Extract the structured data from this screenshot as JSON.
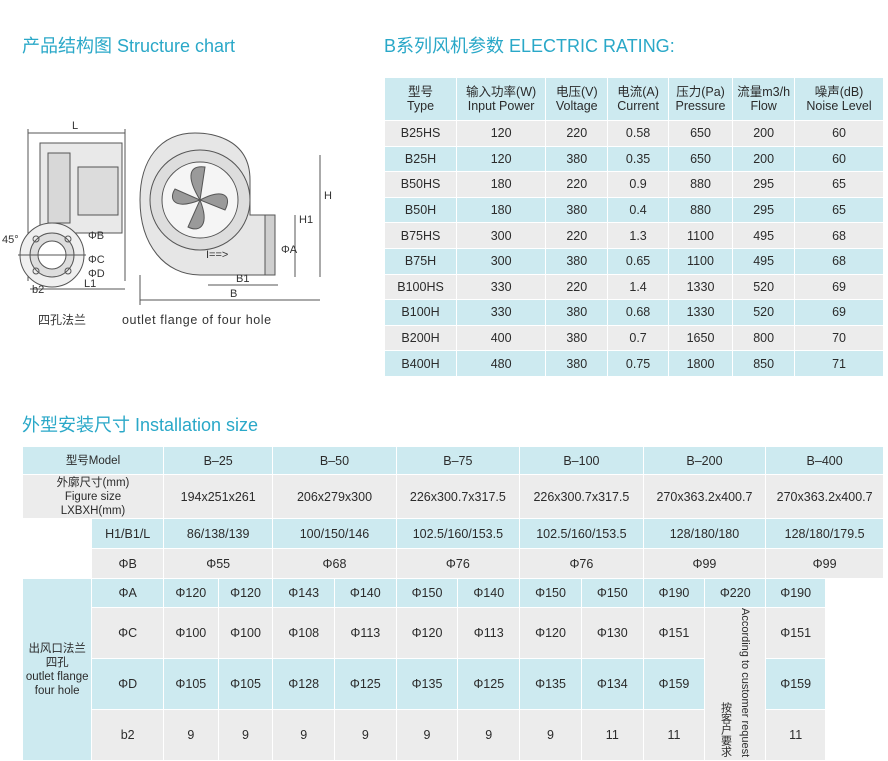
{
  "headings": {
    "structure": "产品结构图 Structure chart",
    "electric": "B系列风机参数  ELECTRIC RATING:",
    "installation": "外型安装尺寸 Installation size"
  },
  "diagram": {
    "caption_left": "四孔法兰",
    "caption_right": "outlet flange of four hole",
    "labels": {
      "L": "L",
      "L1": "L1",
      "b2": "b2",
      "deg": "45°",
      "phiB": "ΦB",
      "phiC": "ΦC",
      "phiD": "ΦD",
      "H": "H",
      "H1": "H1",
      "phiA": "ΦA",
      "B1": "B1",
      "B": "B",
      "arrow": "I==>"
    }
  },
  "electric": {
    "headers": [
      [
        "型号",
        "Type"
      ],
      [
        "输入功率(W)",
        "Input Power"
      ],
      [
        "电压(V)",
        "Voltage"
      ],
      [
        "电流(A)",
        "Current"
      ],
      [
        "压力(Pa)",
        "Pressure"
      ],
      [
        "流量m3/h",
        "Flow"
      ],
      [
        "噪声(dB)",
        "Noise Level"
      ]
    ],
    "rows": [
      [
        "B25HS",
        "120",
        "220",
        "0.58",
        "650",
        "200",
        "60"
      ],
      [
        "B25H",
        "120",
        "380",
        "0.35",
        "650",
        "200",
        "60"
      ],
      [
        "B50HS",
        "180",
        "220",
        "0.9",
        "880",
        "295",
        "65"
      ],
      [
        "B50H",
        "180",
        "380",
        "0.4",
        "880",
        "295",
        "65"
      ],
      [
        "B75HS",
        "300",
        "220",
        "1.3",
        "1100",
        "495",
        "68"
      ],
      [
        "B75H",
        "300",
        "380",
        "0.65",
        "1100",
        "495",
        "68"
      ],
      [
        "B100HS",
        "330",
        "220",
        "1.4",
        "1330",
        "520",
        "69"
      ],
      [
        "B100H",
        "330",
        "380",
        "0.68",
        "1330",
        "520",
        "69"
      ],
      [
        "B200H",
        "400",
        "380",
        "0.7",
        "1650",
        "800",
        "70"
      ],
      [
        "B400H",
        "480",
        "380",
        "0.75",
        "1800",
        "850",
        "71"
      ]
    ]
  },
  "install": {
    "model_label": "型号Model",
    "figsize_label": [
      "外廓尺寸(mm)",
      "Figure size",
      "LXBXH(mm)"
    ],
    "flange_label": [
      "出风口法兰",
      "四孔",
      "outlet flange",
      "four hole"
    ],
    "row_labels": {
      "h": "H1/B1/L",
      "phiB": "ΦB",
      "phiA": "ΦA",
      "phiC": "ΦC",
      "phiD": "ΦD",
      "b2": "b2"
    },
    "models": [
      "B–25",
      "B–50",
      "B–75",
      "B–100",
      "B–200",
      "B–400"
    ],
    "figsize": [
      "194x251x261",
      "206x279x300",
      "226x300.7x317.5",
      "226x300.7x317.5",
      "270x363.2x400.7",
      "270x363.2x400.7"
    ],
    "h": [
      "86/138/139",
      "100/150/146",
      "102.5/160/153.5",
      "102.5/160/153.5",
      "128/180/180",
      "128/180/179.5"
    ],
    "phiB": [
      "Φ55",
      "Φ68",
      "Φ76",
      "Φ76",
      "Φ99",
      "Φ99"
    ],
    "phiA": [
      "Φ120",
      "Φ120",
      "Φ143",
      "Φ140",
      "Φ150",
      "Φ140",
      "Φ150",
      "Φ150",
      "Φ190",
      "Φ220",
      "Φ190"
    ],
    "phiC": [
      "Φ100",
      "Φ100",
      "Φ108",
      "Φ113",
      "Φ120",
      "Φ113",
      "Φ120",
      "Φ130",
      "Φ151",
      "Φ151"
    ],
    "phiD": [
      "Φ105",
      "Φ105",
      "Φ128",
      "Φ125",
      "Φ135",
      "Φ125",
      "Φ135",
      "Φ134",
      "Φ159",
      "Φ159"
    ],
    "b2": [
      "9",
      "9",
      "9",
      "9",
      "9",
      "9",
      "9",
      "11",
      "11",
      "11"
    ],
    "note_cn": "按客户要求",
    "note_en": "According to customer request"
  }
}
